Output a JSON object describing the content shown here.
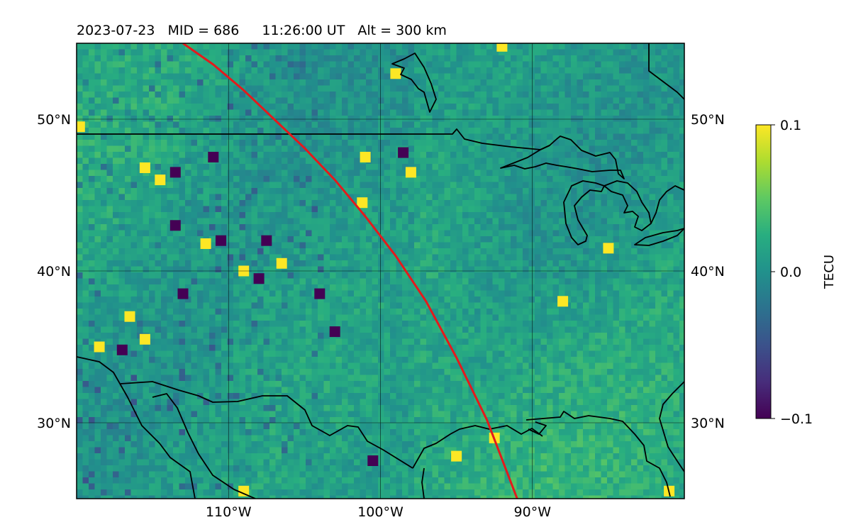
{
  "title": {
    "date": "2023-07-23",
    "mid": "MID = 686",
    "time": "11:26:00  UT",
    "alt": "Alt = 300 km"
  },
  "map": {
    "lon_range": [
      -120,
      -80
    ],
    "lat_range": [
      25,
      55
    ],
    "lat_ticks": [
      {
        "value": 50,
        "label": "50°N"
      },
      {
        "value": 40,
        "label": "40°N"
      },
      {
        "value": 30,
        "label": "30°N"
      }
    ],
    "lon_ticks": [
      {
        "value": -110,
        "label": "110°W"
      },
      {
        "value": -100,
        "label": "100°W"
      },
      {
        "value": -90,
        "label": "90°W"
      }
    ],
    "grid": true,
    "colormap": "viridis",
    "field": "TEC perturbation",
    "track_color": "#e41a1c",
    "track": [
      [
        -113.0,
        55.0
      ],
      [
        -111.0,
        53.6
      ],
      [
        -109.0,
        51.9
      ],
      [
        -107.0,
        50.0
      ],
      [
        -105.0,
        48.1
      ],
      [
        -103.0,
        46.0
      ],
      [
        -101.0,
        43.6
      ],
      [
        -99.0,
        41.0
      ],
      [
        -97.0,
        38.0
      ],
      [
        -95.0,
        34.3
      ],
      [
        -93.0,
        30.2
      ],
      [
        -91.0,
        25.0
      ]
    ],
    "hotspots": [
      {
        "lon": -115.5,
        "lat": 46.8,
        "value": 0.1
      },
      {
        "lon": -114.5,
        "lat": 46.0,
        "value": 0.1
      },
      {
        "lon": -113.5,
        "lat": 46.5,
        "value": -0.1
      },
      {
        "lon": -111.0,
        "lat": 47.5,
        "value": -0.1
      },
      {
        "lon": -113.5,
        "lat": 43.0,
        "value": -0.1
      },
      {
        "lon": -110.5,
        "lat": 42.0,
        "value": -0.1
      },
      {
        "lon": -107.5,
        "lat": 42.0,
        "value": -0.1
      },
      {
        "lon": -109.0,
        "lat": 40.0,
        "value": 0.1
      },
      {
        "lon": -111.5,
        "lat": 41.8,
        "value": 0.1
      },
      {
        "lon": -108.0,
        "lat": 39.5,
        "value": -0.1
      },
      {
        "lon": -113.0,
        "lat": 38.5,
        "value": -0.1
      },
      {
        "lon": -116.5,
        "lat": 37.0,
        "value": 0.1
      },
      {
        "lon": -115.5,
        "lat": 35.5,
        "value": 0.1
      },
      {
        "lon": -118.5,
        "lat": 35.0,
        "value": 0.1
      },
      {
        "lon": -117.0,
        "lat": 34.8,
        "value": -0.1
      },
      {
        "lon": -101.0,
        "lat": 47.5,
        "value": 0.1
      },
      {
        "lon": -98.5,
        "lat": 47.8,
        "value": -0.1
      },
      {
        "lon": -98.0,
        "lat": 46.5,
        "value": 0.1
      },
      {
        "lon": -101.2,
        "lat": 44.5,
        "value": 0.1
      },
      {
        "lon": -104.0,
        "lat": 38.5,
        "value": -0.1
      },
      {
        "lon": -106.5,
        "lat": 40.5,
        "value": 0.1
      },
      {
        "lon": -103.0,
        "lat": 36.0,
        "value": -0.1
      },
      {
        "lon": -100.5,
        "lat": 27.5,
        "value": -0.1
      },
      {
        "lon": -95.0,
        "lat": 27.8,
        "value": 0.1
      },
      {
        "lon": -92.5,
        "lat": 29.0,
        "value": 0.1
      },
      {
        "lon": -109.0,
        "lat": 25.5,
        "value": 0.1
      },
      {
        "lon": -81.0,
        "lat": 25.5,
        "value": 0.1
      },
      {
        "lon": -99.0,
        "lat": 53.0,
        "value": 0.1
      },
      {
        "lon": -92.0,
        "lat": 54.8,
        "value": 0.1
      },
      {
        "lon": -119.8,
        "lat": 49.5,
        "value": 0.1
      },
      {
        "lon": -88.0,
        "lat": 38.0,
        "value": 0.1
      },
      {
        "lon": -85.0,
        "lat": 41.5,
        "value": 0.1
      }
    ]
  },
  "colorbar": {
    "label": "TECU",
    "min": -0.1,
    "max": 0.1,
    "ticks": [
      {
        "value": 0.1,
        "label": "0.1"
      },
      {
        "value": 0.0,
        "label": "0.0"
      },
      {
        "value": -0.1,
        "label": "−0.1"
      }
    ]
  }
}
